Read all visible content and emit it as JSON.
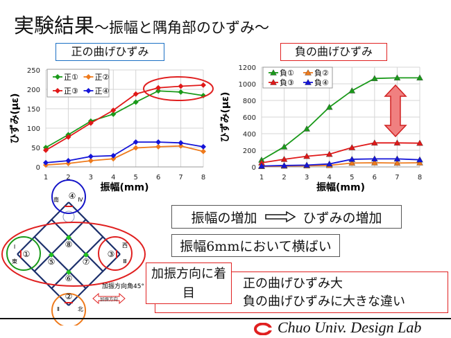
{
  "title": {
    "main": "実験結果",
    "sub": "～振幅と隅角部のひずみ～"
  },
  "chart_data": [
    {
      "type": "line",
      "title": "正の曲げひずみ",
      "xlabel": "振幅(mm)",
      "ylabel": "ひずみ(με)",
      "x": [
        1,
        2,
        3,
        4,
        5,
        6,
        7,
        8
      ],
      "xlim": [
        1,
        8
      ],
      "ylim": [
        0,
        250
      ],
      "yticks": [
        0,
        50,
        100,
        150,
        200,
        250
      ],
      "grid": true,
      "legend": "top-left",
      "marker": "diamond",
      "series": [
        {
          "name": "正①",
          "color": "#1a9a1a",
          "values": [
            50,
            83,
            118,
            136,
            167,
            196,
            193,
            184
          ]
        },
        {
          "name": "正②",
          "color": "#ee7a1c",
          "values": [
            5,
            9,
            16,
            21,
            49,
            52,
            54,
            40
          ]
        },
        {
          "name": "正③",
          "color": "#e01818",
          "values": [
            43,
            77,
            113,
            146,
            188,
            204,
            208,
            211
          ]
        },
        {
          "name": "正④",
          "color": "#1414d8",
          "values": [
            11,
            16,
            27,
            29,
            64,
            64,
            62,
            52
          ]
        }
      ],
      "annotation": "red ellipse around 正① and 正③ at x 6-8"
    },
    {
      "type": "line",
      "title": "負の曲げひずみ",
      "xlabel": "振幅(mm)",
      "ylabel": "ひずみ(με)",
      "x": [
        1,
        2,
        3,
        4,
        5,
        6,
        7,
        8
      ],
      "xlim": [
        1,
        8
      ],
      "ylim": [
        0,
        1200
      ],
      "yticks": [
        0,
        200,
        400,
        600,
        800,
        1000,
        1200
      ],
      "grid": true,
      "legend": "top-left",
      "marker": "triangle",
      "series": [
        {
          "name": "負①",
          "color": "#1a9a1a",
          "values": [
            83,
            242,
            458,
            719,
            917,
            1064,
            1072,
            1072
          ]
        },
        {
          "name": "負②",
          "color": "#ee7a1c",
          "values": [
            6,
            11,
            14,
            19,
            47,
            50,
            47,
            50
          ]
        },
        {
          "name": "負③",
          "color": "#e01818",
          "values": [
            50,
            92,
            128,
            153,
            233,
            289,
            289,
            286
          ]
        },
        {
          "name": "負④",
          "color": "#1414d8",
          "values": [
            11,
            17,
            22,
            36,
            92,
            97,
            97,
            86
          ]
        }
      ],
      "annotation": "red double-headed arrow between 負① and 負③"
    }
  ],
  "diagram": {
    "nodes": [
      "①",
      "②",
      "③",
      "④",
      "⑤",
      "⑥",
      "⑦",
      "⑧"
    ],
    "directions": {
      "south": "南",
      "iv": "Ⅳ",
      "i": "Ⅰ",
      "east": "東",
      "west": "西",
      "iii": "Ⅲ",
      "ii": "Ⅱ",
      "north": "北"
    },
    "angle_label": "加振方向角45°",
    "arrow_label": "加振方向"
  },
  "notes": {
    "increase": {
      "left": "振幅の増加",
      "right": "ひずみの増加"
    },
    "plateau": "振幅6mmにおいて横ばい",
    "focus": "加振方向に着目",
    "focus_lines": [
      "正の曲げひずみ大",
      "負の曲げひずみに大きな違い"
    ]
  },
  "footer": {
    "lab": "Chuo Univ. Design Lab"
  },
  "colors": {
    "blue": "#1a6fc4",
    "red": "#e02020",
    "navy": "#1b2f6b",
    "green": "#1a9a1a",
    "orange": "#ee7a1c"
  }
}
